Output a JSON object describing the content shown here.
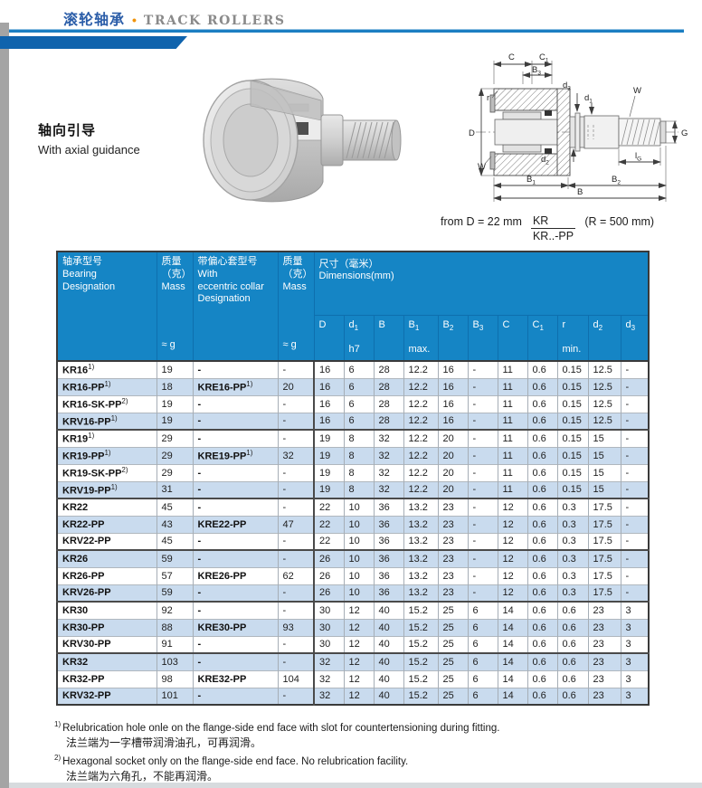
{
  "header": {
    "title_cn": "滚轮轴承",
    "bullet": "•",
    "title_en": "TRACK ROLLERS"
  },
  "section": {
    "label_cn": "轴向引导",
    "label_en": "With axial guidance"
  },
  "size_note": {
    "prefix": "from D = 22 mm",
    "fraction_top": "KR",
    "fraction_bottom": "KR..-PP",
    "suffix": "(R = 500 mm)"
  },
  "diagram": {
    "labels": {
      "C": "C",
      "C1b": "C",
      "C1s": "1",
      "B3b": "B",
      "B3s": "3",
      "d3b": "d",
      "d3s": "3",
      "d1b": "d",
      "d1s": "1",
      "W": "W",
      "r": "r",
      "D": "D",
      "G": "G",
      "d2b": "d",
      "d2s": "2",
      "lGb": "l",
      "lGs": "G",
      "B1b": "B",
      "B1s": "1",
      "B2b": "B",
      "B2s": "2",
      "B": "B"
    }
  },
  "table": {
    "header": {
      "col1": {
        "cn": "轴承型号",
        "en1": "Bearing",
        "en2": "Designation"
      },
      "col2": {
        "cn1": "质量",
        "cn2": "（克）",
        "en": "Mass",
        "unit": "≈ g"
      },
      "col3": {
        "cn": "带偏心套型号",
        "en1": "With",
        "en2": "eccentric collar",
        "en3": "Designation"
      },
      "col4": {
        "cn1": "质量",
        "cn2": "（克）",
        "en": "Mass",
        "unit": "≈ g"
      },
      "col5": {
        "cn": "尺寸（毫米）",
        "en": "Dimensions(mm)"
      },
      "dims": [
        {
          "sym": "D",
          "sub": "",
          "qual": ""
        },
        {
          "sym": "d",
          "sub": "1",
          "qual": "h7"
        },
        {
          "sym": "B",
          "sub": "",
          "qual": ""
        },
        {
          "sym": "B",
          "sub": "1",
          "qual": "max."
        },
        {
          "sym": "B",
          "sub": "2",
          "qual": ""
        },
        {
          "sym": "B",
          "sub": "3",
          "qual": ""
        },
        {
          "sym": "C",
          "sub": "",
          "qual": ""
        },
        {
          "sym": "C",
          "sub": "1",
          "qual": ""
        },
        {
          "sym": "r",
          "sub": "",
          "qual": "min."
        },
        {
          "sym": "d",
          "sub": "2",
          "qual": ""
        },
        {
          "sym": "d",
          "sub": "3",
          "qual": ""
        }
      ]
    },
    "rows": [
      {
        "designation": "KR16",
        "sup": "1)",
        "mass": "19",
        "ecc": "-",
        "ecc_sup": "",
        "ecc_mass": "-",
        "group_start": false,
        "dims": [
          "16",
          "6",
          "28",
          "12.2",
          "16",
          "-",
          "11",
          "0.6",
          "0.15",
          "12.5",
          "-"
        ]
      },
      {
        "designation": "KR16-PP",
        "sup": "1)",
        "mass": "18",
        "ecc": "KRE16-PP",
        "ecc_sup": "1)",
        "ecc_mass": "20",
        "group_start": false,
        "dims": [
          "16",
          "6",
          "28",
          "12.2",
          "16",
          "-",
          "11",
          "0.6",
          "0.15",
          "12.5",
          "-"
        ]
      },
      {
        "designation": "KR16-SK-PP",
        "sup": "2)",
        "mass": "19",
        "ecc": "-",
        "ecc_sup": "",
        "ecc_mass": "-",
        "group_start": false,
        "dims": [
          "16",
          "6",
          "28",
          "12.2",
          "16",
          "-",
          "11",
          "0.6",
          "0.15",
          "12.5",
          "-"
        ]
      },
      {
        "designation": "KRV16-PP",
        "sup": "1)",
        "mass": "19",
        "ecc": "-",
        "ecc_sup": "",
        "ecc_mass": "-",
        "group_start": false,
        "dims": [
          "16",
          "6",
          "28",
          "12.2",
          "16",
          "-",
          "11",
          "0.6",
          "0.15",
          "12.5",
          "-"
        ]
      },
      {
        "designation": "KR19",
        "sup": "1)",
        "mass": "29",
        "ecc": "-",
        "ecc_sup": "",
        "ecc_mass": "-",
        "group_start": true,
        "dims": [
          "19",
          "8",
          "32",
          "12.2",
          "20",
          "-",
          "11",
          "0.6",
          "0.15",
          "15",
          "-"
        ]
      },
      {
        "designation": "KR19-PP",
        "sup": "1)",
        "mass": "29",
        "ecc": "KRE19-PP",
        "ecc_sup": "1)",
        "ecc_mass": "32",
        "group_start": false,
        "dims": [
          "19",
          "8",
          "32",
          "12.2",
          "20",
          "-",
          "11",
          "0.6",
          "0.15",
          "15",
          "-"
        ]
      },
      {
        "designation": "KR19-SK-PP",
        "sup": "2)",
        "mass": "29",
        "ecc": "-",
        "ecc_sup": "",
        "ecc_mass": "-",
        "group_start": false,
        "dims": [
          "19",
          "8",
          "32",
          "12.2",
          "20",
          "-",
          "11",
          "0.6",
          "0.15",
          "15",
          "-"
        ]
      },
      {
        "designation": "KRV19-PP",
        "sup": "1)",
        "mass": "31",
        "ecc": "-",
        "ecc_sup": "",
        "ecc_mass": "-",
        "group_start": false,
        "dims": [
          "19",
          "8",
          "32",
          "12.2",
          "20",
          "-",
          "11",
          "0.6",
          "0.15",
          "15",
          "-"
        ]
      },
      {
        "designation": "KR22",
        "sup": "",
        "mass": "45",
        "ecc": "-",
        "ecc_sup": "",
        "ecc_mass": "-",
        "group_start": true,
        "dims": [
          "22",
          "10",
          "36",
          "13.2",
          "23",
          "-",
          "12",
          "0.6",
          "0.3",
          "17.5",
          "-"
        ]
      },
      {
        "designation": "KR22-PP",
        "sup": "",
        "mass": "43",
        "ecc": "KRE22-PP",
        "ecc_sup": "",
        "ecc_mass": "47",
        "group_start": false,
        "dims": [
          "22",
          "10",
          "36",
          "13.2",
          "23",
          "-",
          "12",
          "0.6",
          "0.3",
          "17.5",
          "-"
        ]
      },
      {
        "designation": "KRV22-PP",
        "sup": "",
        "mass": "45",
        "ecc": "-",
        "ecc_sup": "",
        "ecc_mass": "-",
        "group_start": false,
        "dims": [
          "22",
          "10",
          "36",
          "13.2",
          "23",
          "-",
          "12",
          "0.6",
          "0.3",
          "17.5",
          "-"
        ]
      },
      {
        "designation": "KR26",
        "sup": "",
        "mass": "59",
        "ecc": "-",
        "ecc_sup": "",
        "ecc_mass": "-",
        "group_start": true,
        "dims": [
          "26",
          "10",
          "36",
          "13.2",
          "23",
          "-",
          "12",
          "0.6",
          "0.3",
          "17.5",
          "-"
        ]
      },
      {
        "designation": "KR26-PP",
        "sup": "",
        "mass": "57",
        "ecc": "KRE26-PP",
        "ecc_sup": "",
        "ecc_mass": "62",
        "group_start": false,
        "dims": [
          "26",
          "10",
          "36",
          "13.2",
          "23",
          "-",
          "12",
          "0.6",
          "0.3",
          "17.5",
          "-"
        ]
      },
      {
        "designation": "KRV26-PP",
        "sup": "",
        "mass": "59",
        "ecc": "-",
        "ecc_sup": "",
        "ecc_mass": "-",
        "group_start": false,
        "dims": [
          "26",
          "10",
          "36",
          "13.2",
          "23",
          "-",
          "12",
          "0.6",
          "0.3",
          "17.5",
          "-"
        ]
      },
      {
        "designation": "KR30",
        "sup": "",
        "mass": "92",
        "ecc": "-",
        "ecc_sup": "",
        "ecc_mass": "-",
        "group_start": true,
        "dims": [
          "30",
          "12",
          "40",
          "15.2",
          "25",
          "6",
          "14",
          "0.6",
          "0.6",
          "23",
          "3"
        ]
      },
      {
        "designation": "KR30-PP",
        "sup": "",
        "mass": "88",
        "ecc": "KRE30-PP",
        "ecc_sup": "",
        "ecc_mass": "93",
        "group_start": false,
        "dims": [
          "30",
          "12",
          "40",
          "15.2",
          "25",
          "6",
          "14",
          "0.6",
          "0.6",
          "23",
          "3"
        ]
      },
      {
        "designation": "KRV30-PP",
        "sup": "",
        "mass": "91",
        "ecc": "-",
        "ecc_sup": "",
        "ecc_mass": "-",
        "group_start": false,
        "dims": [
          "30",
          "12",
          "40",
          "15.2",
          "25",
          "6",
          "14",
          "0.6",
          "0.6",
          "23",
          "3"
        ]
      },
      {
        "designation": "KR32",
        "sup": "",
        "mass": "103",
        "ecc": "-",
        "ecc_sup": "",
        "ecc_mass": "-",
        "group_start": true,
        "dims": [
          "32",
          "12",
          "40",
          "15.2",
          "25",
          "6",
          "14",
          "0.6",
          "0.6",
          "23",
          "3"
        ]
      },
      {
        "designation": "KR32-PP",
        "sup": "",
        "mass": "98",
        "ecc": "KRE32-PP",
        "ecc_sup": "",
        "ecc_mass": "104",
        "group_start": false,
        "dims": [
          "32",
          "12",
          "40",
          "15.2",
          "25",
          "6",
          "14",
          "0.6",
          "0.6",
          "23",
          "3"
        ]
      },
      {
        "designation": "KRV32-PP",
        "sup": "",
        "mass": "101",
        "ecc": "-",
        "ecc_sup": "",
        "ecc_mass": "-",
        "group_start": false,
        "dims": [
          "32",
          "12",
          "40",
          "15.2",
          "25",
          "6",
          "14",
          "0.6",
          "0.6",
          "23",
          "3"
        ]
      }
    ]
  },
  "footnotes": [
    {
      "marker": "1)",
      "en": "Relubrication hole onle on the flange-side end face with slot for countertensioning during fitting.",
      "cn": "法兰端为一字槽带润滑油孔，可再润滑。"
    },
    {
      "marker": "2)",
      "en": "Hexagonal socket only on the flange-side end face. No relubrication facility.",
      "cn": "法兰端为六角孔，不能再润滑。"
    }
  ],
  "colors": {
    "header_blue": "#1585c5",
    "row_blue": "#c9dbee",
    "accent_blue": "#1b7ec2",
    "tab_blue": "#0f63ad",
    "title_cn_blue": "#2b5da8",
    "title_en_gray": "#8a8a8a",
    "bullet_orange": "#f0930a"
  }
}
